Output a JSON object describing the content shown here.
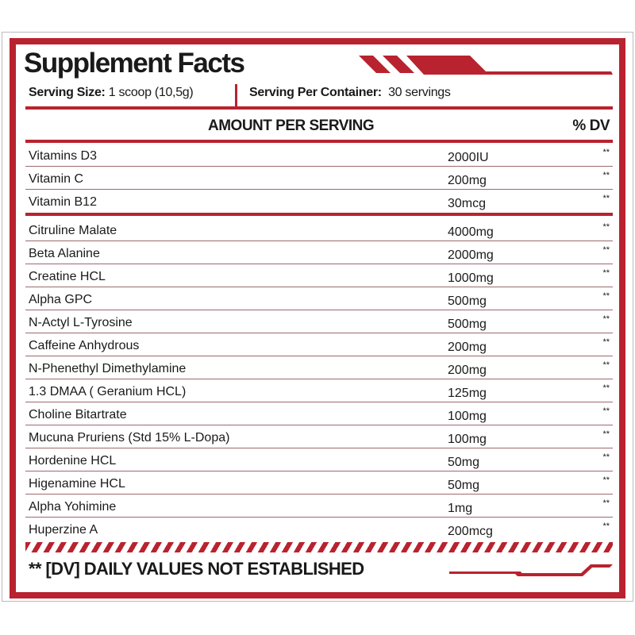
{
  "title": "Supplement Facts",
  "serving": {
    "size_label": "Serving Size:",
    "size_value": "1 scoop (10,5g)",
    "per_container_label": "Serving Per Container:",
    "per_container_value": "30 servings"
  },
  "header": {
    "amount": "AMOUNT PER SERVING",
    "dv": "% DV"
  },
  "vitamins": [
    {
      "name": "Vitamins D3",
      "amount": "2000IU",
      "dv": "**"
    },
    {
      "name": "Vitamin C",
      "amount": "200mg",
      "dv": "**"
    },
    {
      "name": "Vitamin B12",
      "amount": "30mcg",
      "dv": "**"
    }
  ],
  "ingredients": [
    {
      "name": "Citruline Malate",
      "amount": "4000mg",
      "dv": "**"
    },
    {
      "name": "Beta Alanine",
      "amount": "2000mg",
      "dv": "**"
    },
    {
      "name": "Creatine HCL",
      "amount": "1000mg",
      "dv": "**"
    },
    {
      "name": "Alpha GPC",
      "amount": "500mg",
      "dv": "**"
    },
    {
      "name": "N-Actyl L-Tyrosine",
      "amount": "500mg",
      "dv": "**"
    },
    {
      "name": "Caffeine Anhydrous",
      "amount": "200mg",
      "dv": "**"
    },
    {
      "name": "N-Phenethyl Dimethylamine",
      "amount": "200mg",
      "dv": "**"
    },
    {
      "name": "1.3 DMAA ( Geranium HCL)",
      "amount": "125mg",
      "dv": "**"
    },
    {
      "name": "Choline Bitartrate",
      "amount": "100mg",
      "dv": "**"
    },
    {
      "name": "Mucuna Pruriens (Std 15% L-Dopa)",
      "amount": "100mg",
      "dv": "**"
    },
    {
      "name": "Hordenine HCL",
      "amount": "50mg",
      "dv": "**"
    },
    {
      "name": "Higenamine HCL",
      "amount": "50mg",
      "dv": "**"
    },
    {
      "name": "Alpha Yohimine",
      "amount": "1mg",
      "dv": "**"
    },
    {
      "name": "Huperzine A",
      "amount": "200mcg",
      "dv": "**"
    }
  ],
  "footer": "** [DV] DAILY VALUES NOT ESTABLISHED",
  "colors": {
    "accent": "#b8232f"
  }
}
